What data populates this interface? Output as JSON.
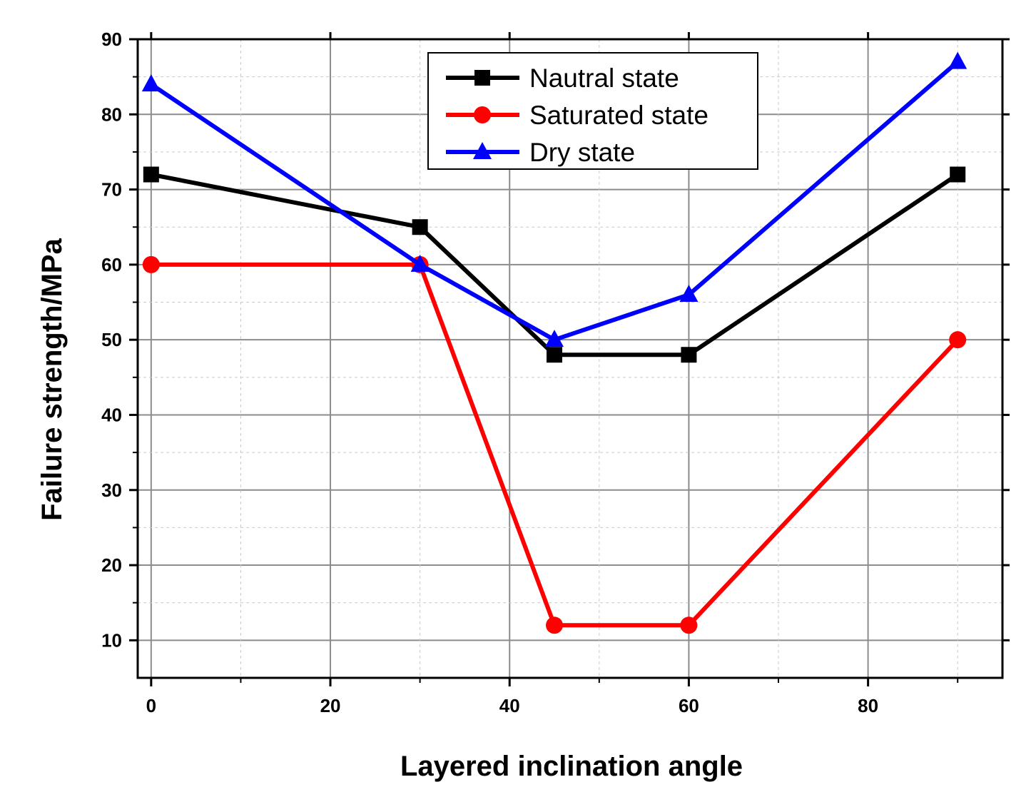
{
  "chart_data": {
    "type": "line",
    "title": "",
    "xlabel": "Layered inclination angle",
    "ylabel": "Failure strength/MPa",
    "xlim": [
      -1.5,
      95
    ],
    "ylim": [
      5,
      90
    ],
    "xticks": [
      0,
      20,
      40,
      60,
      80
    ],
    "yticks": [
      10,
      20,
      30,
      40,
      50,
      60,
      70,
      80,
      90
    ],
    "grid": true,
    "legend_position": "top-center",
    "x": [
      0,
      30,
      45,
      60,
      90
    ],
    "series": [
      {
        "name": "Nautral state",
        "color": "#000000",
        "marker": "square",
        "values": [
          72,
          65,
          48,
          48,
          72
        ]
      },
      {
        "name": "Saturated state",
        "color": "#ff0000",
        "marker": "circle",
        "values": [
          60,
          60,
          12,
          12,
          50
        ]
      },
      {
        "name": "Dry state",
        "color": "#0000ff",
        "marker": "triangle",
        "values": [
          84,
          60,
          50,
          56,
          87
        ]
      }
    ]
  }
}
